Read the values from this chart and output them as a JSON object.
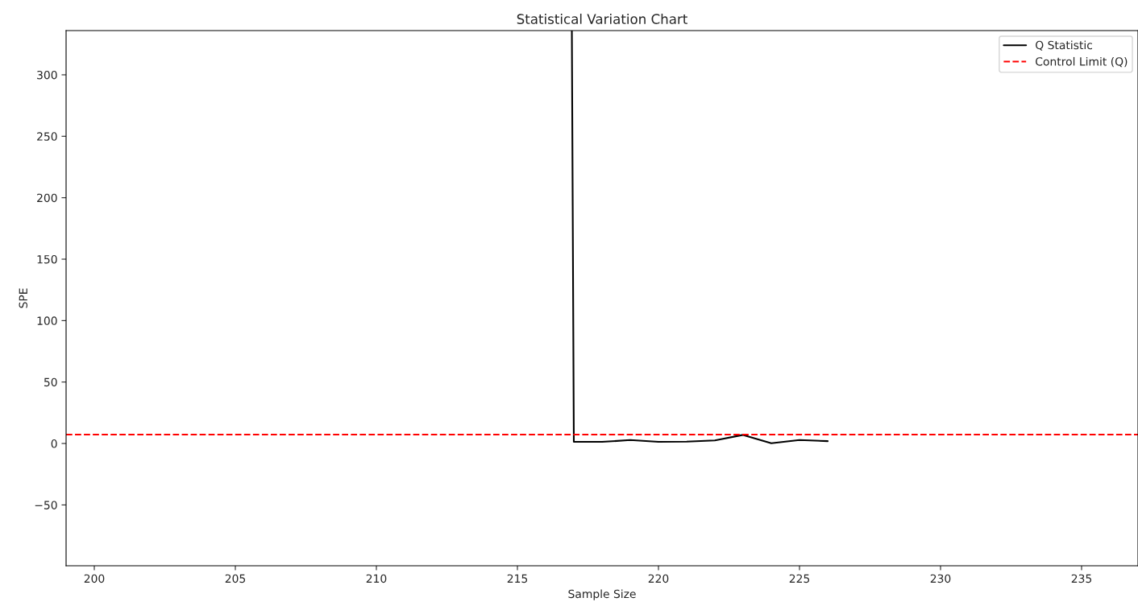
{
  "chart_data": {
    "type": "line",
    "title": "Statistical Variation Chart",
    "xlabel": "Sample Size",
    "ylabel": "SPE",
    "series": [
      {
        "name": "Q Statistic",
        "color": "#000000",
        "x": [
          216.93,
          217,
          218,
          219,
          220,
          221,
          222,
          223,
          224,
          225,
          226
        ],
        "values": [
          336,
          1.3,
          1.3,
          2.8,
          1.3,
          1.5,
          2.5,
          7.0,
          0.2,
          2.8,
          1.9
        ]
      }
    ],
    "ref_lines": [
      {
        "axis": "y",
        "value": 7.2,
        "label": "Control Limit (Q)",
        "color": "#ff0000",
        "line_style": "dashed"
      }
    ],
    "xlim": [
      199.0,
      237.0
    ],
    "ylim": [
      -99.5,
      336
    ],
    "xticks": [
      200,
      205,
      210,
      215,
      220,
      225,
      230,
      235
    ],
    "yticks": [
      -50,
      0,
      50,
      100,
      150,
      200,
      250,
      300
    ],
    "grid": false,
    "legend": "top right"
  }
}
